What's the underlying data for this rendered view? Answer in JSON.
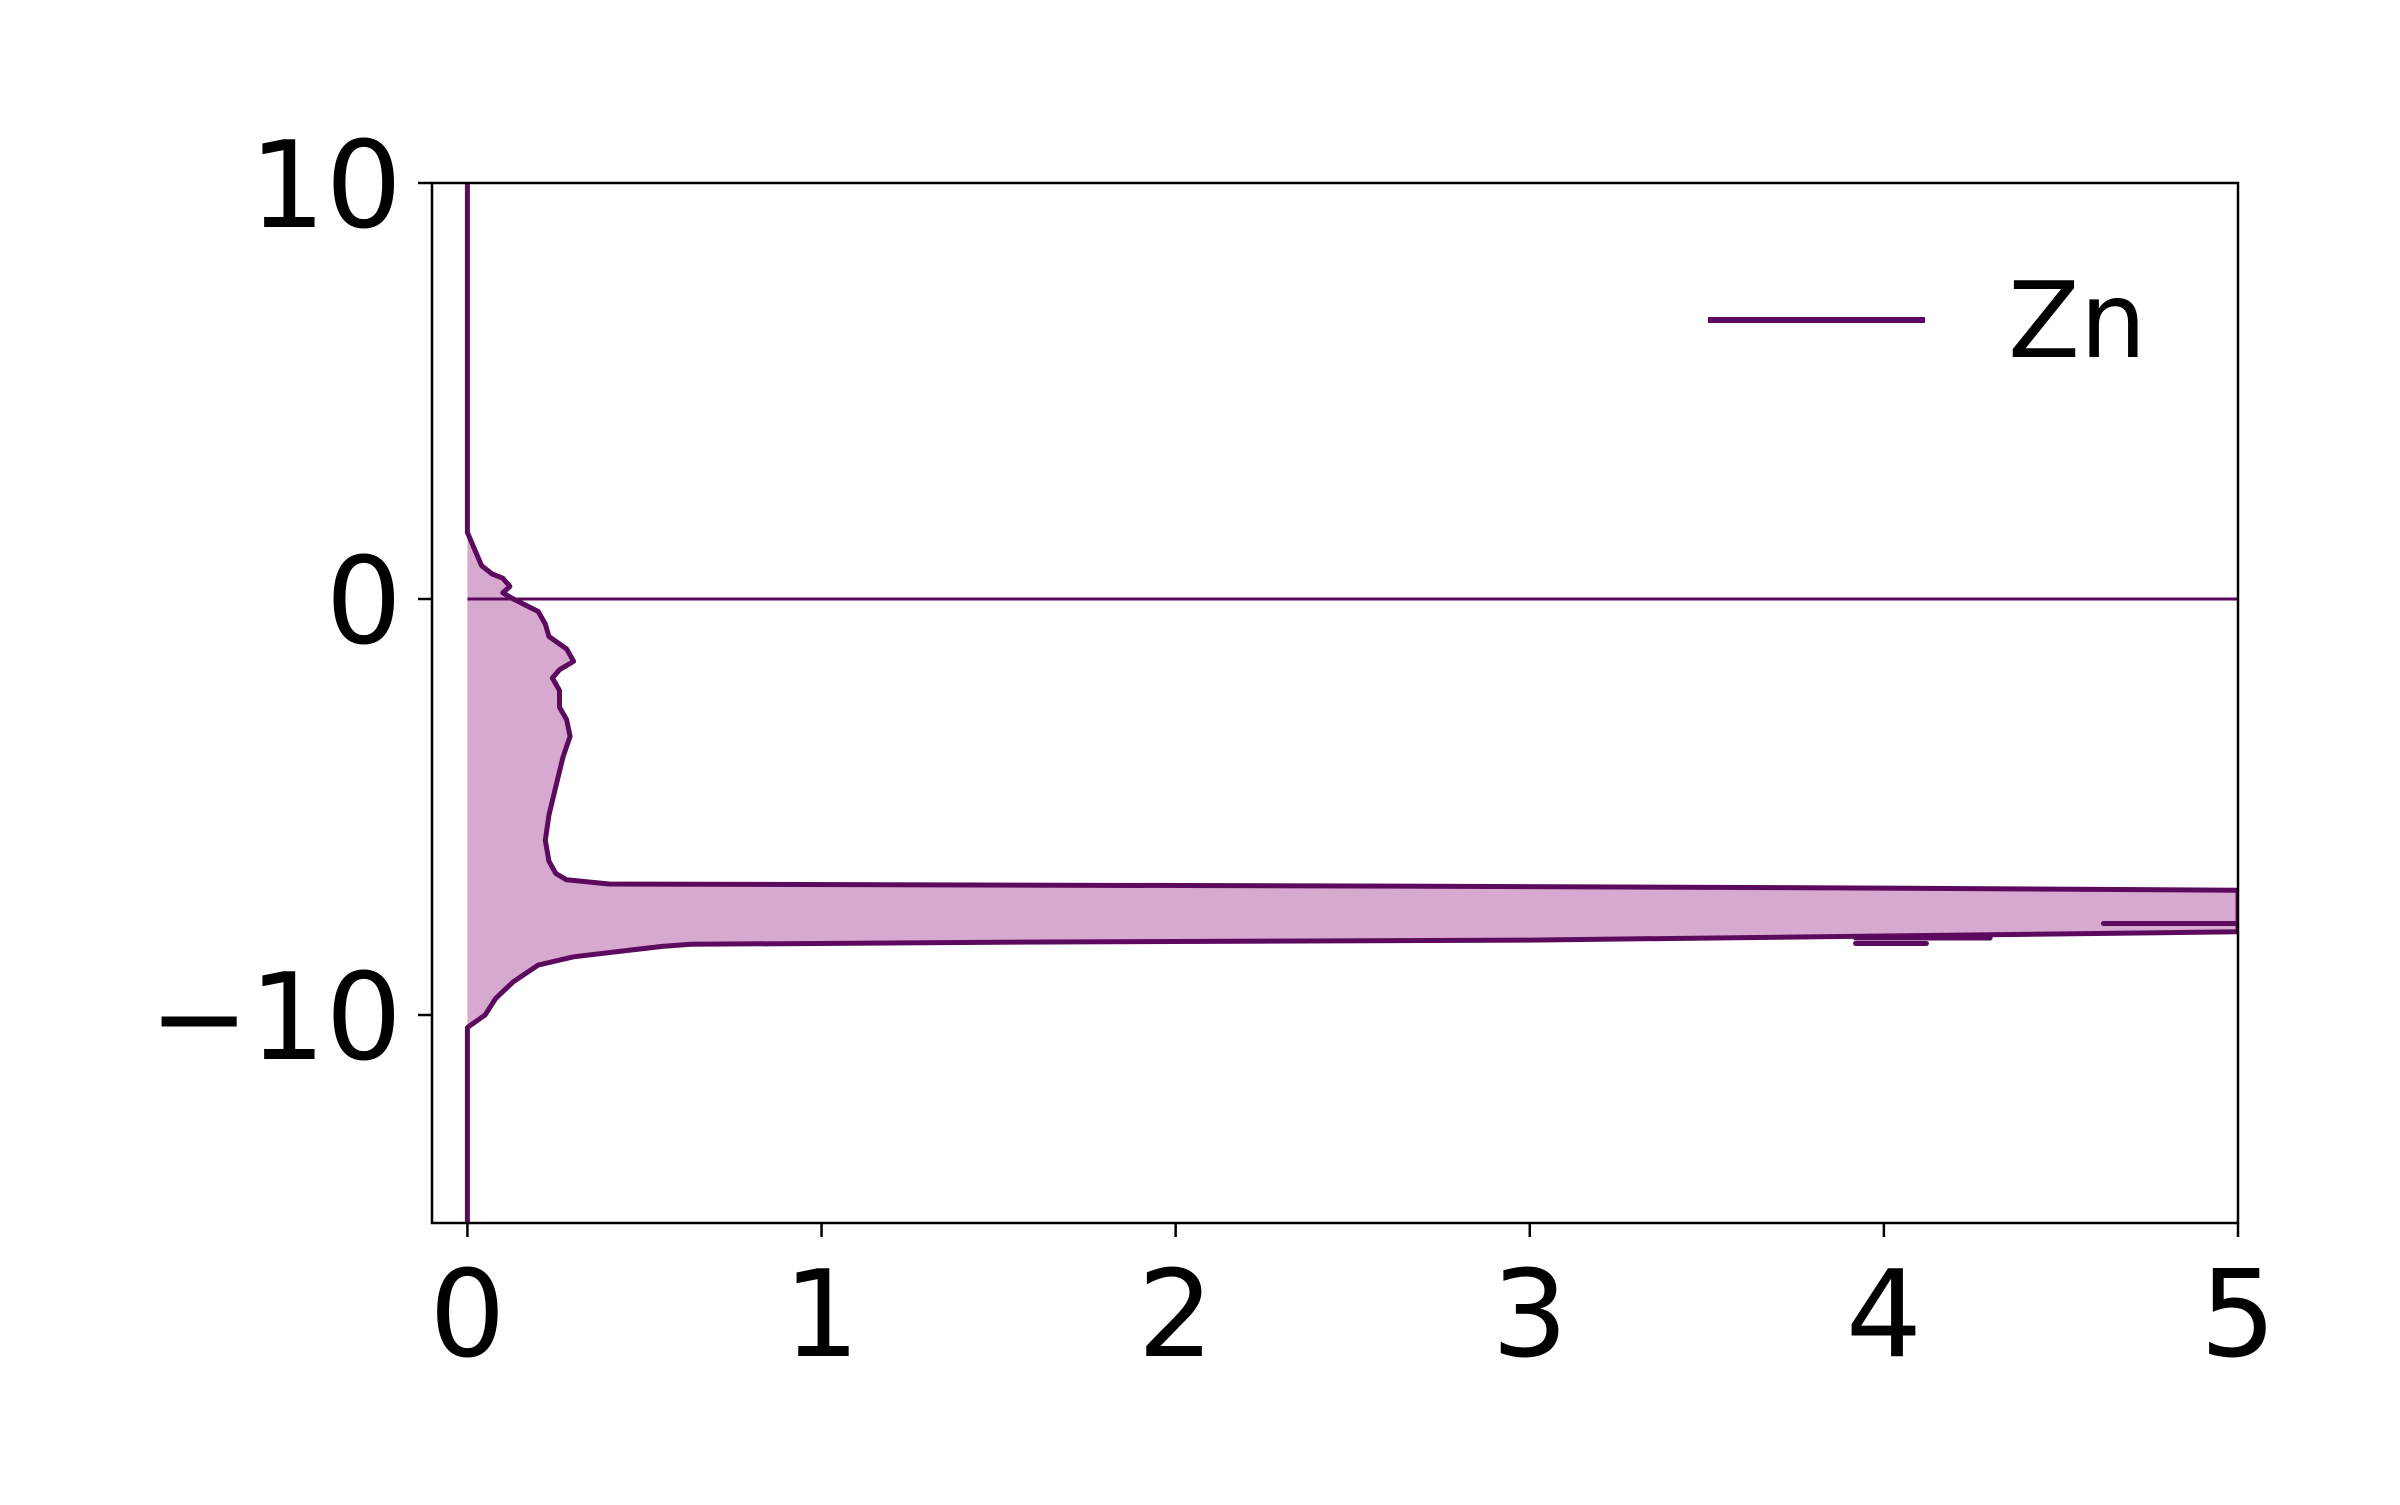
{
  "chart_data": {
    "type": "line",
    "orientation": "horizontal-density (x = density, y = energy)",
    "title": "",
    "xlabel": "",
    "ylabel": "",
    "xlim": [
      -0.1,
      5.0
    ],
    "ylim": [
      -15,
      10
    ],
    "x_ticks": [
      0,
      1,
      2,
      3,
      4,
      5
    ],
    "x_tick_labels": [
      "0",
      "1",
      "2",
      "3",
      "4",
      "5"
    ],
    "y_ticks": [
      -10,
      0,
      10
    ],
    "y_tick_labels": [
      "−10",
      "0",
      "10"
    ],
    "grid": false,
    "legend": {
      "position": "upper-right",
      "entries": [
        "Zn"
      ]
    },
    "colors": {
      "line": "#5c0a5e",
      "fill": "#d8a9d0",
      "reference_line": "#5c0a5e"
    },
    "reference_line": {
      "orientation": "horizontal",
      "y": 0
    },
    "series": [
      {
        "name": "Zn",
        "filled": true,
        "points": [
          {
            "e": 10.0,
            "d": 0.0
          },
          {
            "e": 1.6,
            "d": 0.0
          },
          {
            "e": 1.2,
            "d": 0.02
          },
          {
            "e": 0.8,
            "d": 0.04
          },
          {
            "e": 0.6,
            "d": 0.07
          },
          {
            "e": 0.5,
            "d": 0.1
          },
          {
            "e": 0.3,
            "d": 0.12
          },
          {
            "e": 0.15,
            "d": 0.1
          },
          {
            "e": 0.0,
            "d": 0.13
          },
          {
            "e": -0.3,
            "d": 0.2
          },
          {
            "e": -0.6,
            "d": 0.22
          },
          {
            "e": -0.9,
            "d": 0.23
          },
          {
            "e": -1.2,
            "d": 0.28
          },
          {
            "e": -1.5,
            "d": 0.3
          },
          {
            "e": -1.7,
            "d": 0.26
          },
          {
            "e": -1.9,
            "d": 0.24
          },
          {
            "e": -2.2,
            "d": 0.26
          },
          {
            "e": -2.6,
            "d": 0.26
          },
          {
            "e": -2.9,
            "d": 0.28
          },
          {
            "e": -3.3,
            "d": 0.29
          },
          {
            "e": -3.8,
            "d": 0.27
          },
          {
            "e": -4.5,
            "d": 0.25
          },
          {
            "e": -5.2,
            "d": 0.23
          },
          {
            "e": -5.8,
            "d": 0.22
          },
          {
            "e": -6.3,
            "d": 0.23
          },
          {
            "e": -6.6,
            "d": 0.25
          },
          {
            "e": -6.75,
            "d": 0.28
          },
          {
            "e": -6.85,
            "d": 0.4
          },
          {
            "e": -6.9,
            "d": 2.5
          },
          {
            "e": -6.95,
            "d": 4.0
          },
          {
            "e": -7.0,
            "d": 5.0
          }
        ],
        "lower_points": [
          {
            "e": -8.0,
            "d": 5.0
          },
          {
            "e": -8.1,
            "d": 4.0
          },
          {
            "e": -8.2,
            "d": 3.0
          },
          {
            "e": -8.25,
            "d": 1.5
          },
          {
            "e": -8.3,
            "d": 0.63
          },
          {
            "e": -8.35,
            "d": 0.55
          },
          {
            "e": -8.45,
            "d": 0.45
          },
          {
            "e": -8.6,
            "d": 0.3
          },
          {
            "e": -8.8,
            "d": 0.2
          },
          {
            "e": -9.2,
            "d": 0.13
          },
          {
            "e": -9.6,
            "d": 0.08
          },
          {
            "e": -10.0,
            "d": 0.05
          },
          {
            "e": -10.3,
            "d": 0.0
          },
          {
            "e": -15.0,
            "d": 0.0
          }
        ],
        "extra_segments": [
          {
            "e": -8.15,
            "d_start": 3.92,
            "d_end": 4.3
          },
          {
            "e": -8.28,
            "d_start": 3.92,
            "d_end": 4.12
          },
          {
            "e": -7.8,
            "d_start": 4.62,
            "d_end": 5.0
          }
        ]
      }
    ]
  }
}
